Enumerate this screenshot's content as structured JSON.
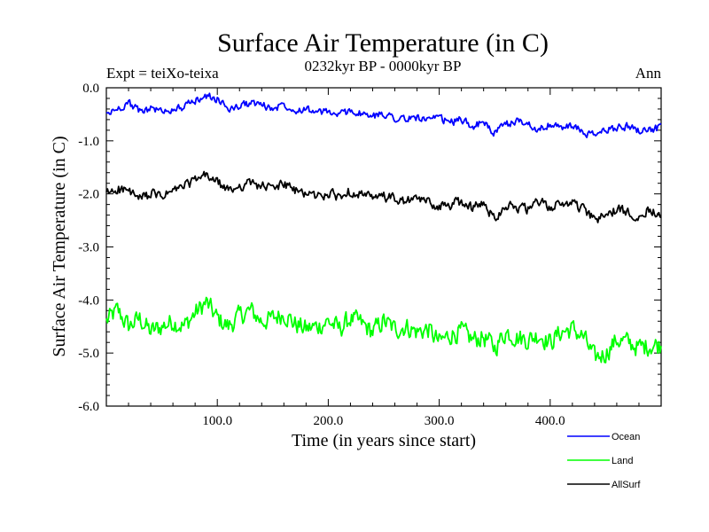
{
  "chart_data": {
    "type": "line",
    "title": "Surface Air Temperature (in C)",
    "subtitle": "0232kyr BP - 0000kyr BP",
    "left_label": "Expt = teiXo-teixa",
    "right_label": "Ann",
    "xlabel": "Time (in years since start)",
    "ylabel": "Surface Air Temperature (in C)",
    "xlim": [
      0,
      500
    ],
    "ylim": [
      -6.0,
      0.0
    ],
    "x_ticks": [
      {
        "value": 100,
        "label": "100.0"
      },
      {
        "value": 200,
        "label": "200.0"
      },
      {
        "value": 300,
        "label": "300.0"
      },
      {
        "value": 400,
        "label": "400.0"
      }
    ],
    "y_ticks": [
      {
        "value": 0.0,
        "label": "0.0"
      },
      {
        "value": -1.0,
        "label": "-1.0"
      },
      {
        "value": -2.0,
        "label": "-2.0"
      },
      {
        "value": -3.0,
        "label": "-3.0"
      },
      {
        "value": -4.0,
        "label": "-4.0"
      },
      {
        "value": -5.0,
        "label": "-5.0"
      },
      {
        "value": -6.0,
        "label": "-6.0"
      }
    ],
    "grid": false,
    "legend_position": "bottom-right",
    "series": [
      {
        "name": "Ocean",
        "color": "#0000ff",
        "x": [
          0,
          10,
          20,
          30,
          40,
          50,
          60,
          70,
          80,
          90,
          100,
          110,
          120,
          130,
          140,
          150,
          160,
          170,
          180,
          190,
          200,
          210,
          220,
          230,
          240,
          250,
          260,
          270,
          280,
          290,
          300,
          310,
          320,
          330,
          340,
          350,
          360,
          370,
          380,
          390,
          400,
          410,
          420,
          430,
          440,
          450,
          460,
          470,
          480,
          490,
          500
        ],
        "values": [
          -0.5,
          -0.4,
          -0.28,
          -0.45,
          -0.38,
          -0.45,
          -0.4,
          -0.36,
          -0.25,
          -0.15,
          -0.22,
          -0.4,
          -0.35,
          -0.28,
          -0.32,
          -0.4,
          -0.3,
          -0.42,
          -0.38,
          -0.48,
          -0.45,
          -0.52,
          -0.42,
          -0.5,
          -0.55,
          -0.48,
          -0.56,
          -0.6,
          -0.55,
          -0.62,
          -0.58,
          -0.65,
          -0.6,
          -0.72,
          -0.66,
          -0.85,
          -0.7,
          -0.62,
          -0.68,
          -0.78,
          -0.7,
          -0.75,
          -0.72,
          -0.85,
          -0.9,
          -0.8,
          -0.75,
          -0.72,
          -0.8,
          -0.78,
          -0.76
        ]
      },
      {
        "name": "Land",
        "color": "#00ff00",
        "x": [
          0,
          10,
          20,
          30,
          40,
          50,
          60,
          70,
          80,
          90,
          100,
          110,
          120,
          130,
          140,
          150,
          160,
          170,
          180,
          190,
          200,
          210,
          220,
          230,
          240,
          250,
          260,
          270,
          280,
          290,
          300,
          310,
          320,
          330,
          340,
          350,
          360,
          370,
          380,
          390,
          400,
          410,
          420,
          430,
          440,
          450,
          460,
          470,
          480,
          490,
          500
        ],
        "values": [
          -4.4,
          -4.2,
          -4.5,
          -4.35,
          -4.6,
          -4.5,
          -4.4,
          -4.5,
          -4.25,
          -4.05,
          -4.35,
          -4.5,
          -4.3,
          -4.2,
          -4.4,
          -4.35,
          -4.25,
          -4.45,
          -4.55,
          -4.5,
          -4.4,
          -4.55,
          -4.35,
          -4.45,
          -4.6,
          -4.4,
          -4.55,
          -4.5,
          -4.6,
          -4.55,
          -4.8,
          -4.65,
          -4.6,
          -4.75,
          -4.7,
          -4.9,
          -4.6,
          -4.7,
          -4.75,
          -4.65,
          -4.8,
          -4.6,
          -4.55,
          -4.7,
          -5.1,
          -5.0,
          -4.75,
          -4.8,
          -4.9,
          -4.85,
          -4.85
        ]
      },
      {
        "name": "AllSurf",
        "color": "#000000",
        "x": [
          0,
          10,
          20,
          30,
          40,
          50,
          60,
          70,
          80,
          90,
          100,
          110,
          120,
          130,
          140,
          150,
          160,
          170,
          180,
          190,
          200,
          210,
          220,
          230,
          240,
          250,
          260,
          270,
          280,
          290,
          300,
          310,
          320,
          330,
          340,
          350,
          360,
          370,
          380,
          390,
          400,
          410,
          420,
          430,
          440,
          450,
          460,
          470,
          480,
          490,
          500
        ],
        "values": [
          -2.0,
          -1.9,
          -1.95,
          -2.1,
          -2.0,
          -2.05,
          -1.95,
          -1.85,
          -1.75,
          -1.65,
          -1.78,
          -1.95,
          -1.85,
          -1.8,
          -1.85,
          -1.9,
          -1.8,
          -1.95,
          -1.98,
          -2.05,
          -2.0,
          -2.05,
          -1.95,
          -2.0,
          -2.1,
          -2.05,
          -2.1,
          -2.15,
          -2.1,
          -2.15,
          -2.25,
          -2.2,
          -2.15,
          -2.25,
          -2.2,
          -2.45,
          -2.2,
          -2.25,
          -2.3,
          -2.15,
          -2.25,
          -2.2,
          -2.15,
          -2.3,
          -2.5,
          -2.4,
          -2.3,
          -2.35,
          -2.4,
          -2.3,
          -2.35
        ]
      }
    ]
  }
}
